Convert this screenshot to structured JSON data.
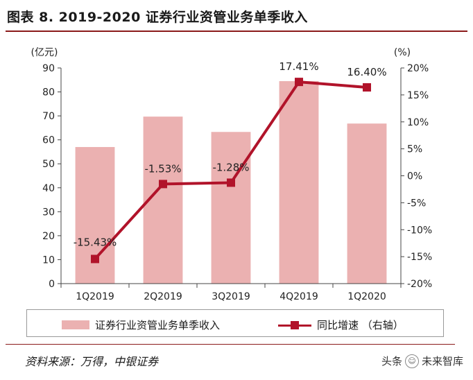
{
  "title": "图表 8. 2019-2020 证券行业资管业务单季收入",
  "source": "资料来源：万得，中银证券",
  "watermark": {
    "prefix": "头条",
    "logo": "☺",
    "name": "未来智库"
  },
  "legend": {
    "bar_label": "证券行业资管业务单季收入",
    "line_label": "同比增速 （右轴）"
  },
  "chart_data": {
    "type": "bar+line",
    "categories": [
      "1Q2019",
      "2Q2019",
      "3Q2019",
      "4Q2019",
      "1Q2020"
    ],
    "series": [
      {
        "name": "证券行业资管业务单季收入",
        "type": "bar",
        "axis": "left",
        "values": [
          57,
          69.7,
          63.3,
          84.5,
          66.8
        ]
      },
      {
        "name": "同比增速 （右轴）",
        "type": "line",
        "axis": "right",
        "values": [
          -15.43,
          -1.53,
          -1.28,
          17.41,
          16.4
        ],
        "labels": [
          "-15.43%",
          "-1.53%",
          "-1.28%",
          "17.41%",
          "16.40%"
        ]
      }
    ],
    "left_axis": {
      "unit": "(亿元)",
      "min": 0,
      "max": 90,
      "step": 10,
      "ticks": [
        "0",
        "10",
        "20",
        "30",
        "40",
        "50",
        "60",
        "70",
        "80",
        "90"
      ]
    },
    "right_axis": {
      "unit": "(%)",
      "min": -20,
      "max": 20,
      "step": 5,
      "ticks": [
        "-20%",
        "-15%",
        "-10%",
        "-5%",
        "0%",
        "5%",
        "10%",
        "15%",
        "20%"
      ]
    },
    "colors": {
      "bar": "#ebb1b1",
      "line": "#b1132a",
      "axis": "#444444"
    }
  }
}
